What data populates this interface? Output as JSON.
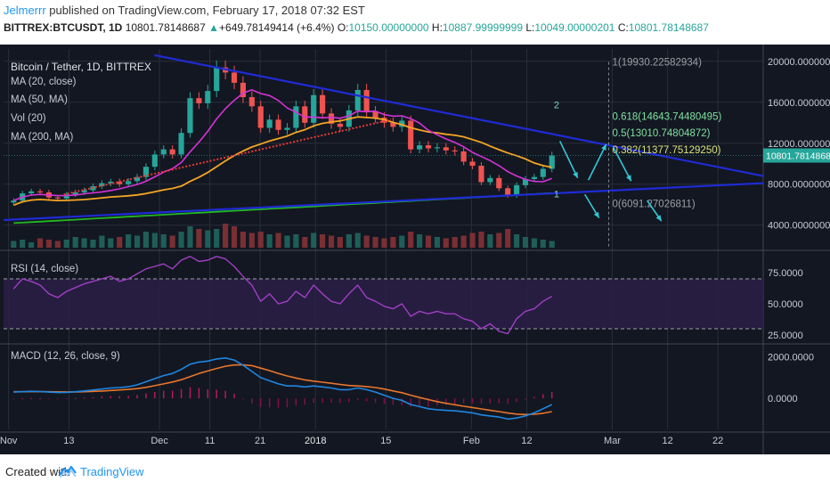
{
  "header": {
    "author": "Jelmerrr",
    "published": " published on TradingView.com, February 17, 2018 07:32 EST",
    "symbol": "BITTREX:BTCUSDT, 1D",
    "price": "10801.78148687",
    "change_arrow": "▲",
    "change": "+649.78149414 (+6.4%)",
    "open_label": "O:",
    "open": "10150.00000000",
    "high_label": "H:",
    "high": "10887.99999999",
    "low_label": "L:",
    "low": "10049.00000201",
    "close_label": "C:",
    "close": "10801.78148687"
  },
  "legend": {
    "title": "Bitcoin / Tether, 1D, BITTREX",
    "ma20": "MA (20, close)",
    "ma50": "MA (50, MA)",
    "vol": "Vol (20)",
    "ma200": "MA (200, MA)"
  },
  "panels": {
    "rsi_label": "RSI (14, close)",
    "macd_label": "MACD (12, 26, close, 9)"
  },
  "footer": {
    "created": "Created with",
    "brand": "TradingView",
    "logo_icon": "tradingview-logo-icon"
  },
  "colors": {
    "background": "#131722",
    "grid": "#2a2e39",
    "up": "#26a69a",
    "down": "#ef5350",
    "ma20": "#d633d6",
    "ma50": "#f5a623",
    "ma200": "#22b822",
    "trendline": "#1f2bd6",
    "fib_annotation": "#7fd3c8",
    "arrow": "#33c7d6",
    "rsi_line": "#a03fc4",
    "macd_line": "#1f86e0",
    "signal_line": "#e8762c",
    "price_tag": "#26a69a"
  },
  "chart_data": [
    {
      "type": "candlestick",
      "title": "Bitcoin / Tether, 1D, BITTREX",
      "x_tick_labels": [
        "Nov",
        "13",
        "Dec",
        "11",
        "21",
        "2018",
        "15",
        "Feb",
        "12",
        "Mar",
        "12",
        "22"
      ],
      "x_tick_dates": [
        "2017-11-01",
        "2017-11-13",
        "2017-12-01",
        "2017-12-11",
        "2017-12-21",
        "2018-01-01",
        "2018-01-15",
        "2018-02-01",
        "2018-02-12",
        "2018-03-01",
        "2018-03-12",
        "2018-03-22"
      ],
      "y_tick_labels": [
        "20000.00000000",
        "16000.00000000",
        "12000.00000000",
        "8000.00000000",
        "4000.00000000"
      ],
      "y_ticks": [
        20000,
        16000,
        12000,
        8000,
        4000
      ],
      "ylim": [
        1800,
        21200
      ],
      "last_price_label": "10801.78148687",
      "closes_approx": [
        6400,
        7100,
        7300,
        7200,
        6700,
        6600,
        7000,
        7200,
        7400,
        7800,
        8100,
        8250,
        8000,
        8300,
        8700,
        9700,
        10900,
        11400,
        10900,
        13000,
        16400,
        15900,
        17100,
        19400,
        18900,
        17900,
        16500,
        15600,
        13500,
        14300,
        13300,
        13500,
        15600,
        14000,
        16700,
        14900,
        13900,
        13600,
        15200,
        17200,
        15100,
        14500,
        14000,
        13600,
        14200,
        11400,
        11800,
        11500,
        11600,
        11300,
        11200,
        10200,
        9800,
        8200,
        8600,
        7600,
        6900,
        7900,
        8500,
        8700,
        9500,
        10800
      ],
      "fib_levels": [
        {
          "label": "1(19930.22582934)",
          "value": 19930.22582934
        },
        {
          "label": "0.618(14643.74480495)",
          "value": 14643.74480495
        },
        {
          "label": "0.5(13010.74804872)",
          "value": 13010.74804872
        },
        {
          "label": "0.382(11377.75129250)",
          "value": 11377.7512925
        },
        {
          "label": "0(6091.27026811)",
          "value": 6091.27026811
        }
      ],
      "annotations": [
        "1",
        "2"
      ],
      "volume_approx": [
        0.25,
        0.3,
        0.2,
        0.35,
        0.3,
        0.25,
        0.3,
        0.4,
        0.35,
        0.3,
        0.45,
        0.35,
        0.4,
        0.5,
        0.45,
        0.6,
        0.55,
        0.5,
        0.45,
        0.6,
        0.8,
        0.7,
        0.65,
        0.7,
        0.9,
        0.8,
        0.6,
        0.55,
        0.6,
        0.5,
        0.55,
        0.45,
        0.5,
        0.4,
        0.55,
        0.5,
        0.45,
        0.4,
        0.5,
        0.55,
        0.45,
        0.4,
        0.35,
        0.4,
        0.45,
        0.6,
        0.5,
        0.45,
        0.4,
        0.35,
        0.4,
        0.45,
        0.55,
        0.6,
        0.5,
        0.55,
        0.7,
        0.5,
        0.4,
        0.35,
        0.3,
        0.25
      ]
    },
    {
      "type": "line",
      "title": "RSI (14, close)",
      "y_tick_labels": [
        "75.0000",
        "50.0000",
        "25.0000"
      ],
      "y_ticks": [
        75,
        50,
        25
      ],
      "ylim": [
        20,
        90
      ],
      "values_approx": [
        62,
        70,
        68,
        65,
        58,
        55,
        60,
        63,
        66,
        68,
        70,
        72,
        68,
        70,
        74,
        78,
        80,
        82,
        78,
        85,
        88,
        84,
        85,
        88,
        86,
        80,
        72,
        65,
        52,
        58,
        50,
        52,
        60,
        55,
        65,
        58,
        52,
        50,
        58,
        65,
        55,
        52,
        48,
        46,
        50,
        40,
        44,
        42,
        44,
        42,
        42,
        38,
        36,
        30,
        34,
        28,
        26,
        38,
        44,
        46,
        52,
        56
      ]
    },
    {
      "type": "line",
      "title": "MACD (12, 26, close, 9)",
      "y_tick_labels": [
        "2000.0000",
        "0.0000"
      ],
      "y_ticks": [
        2000,
        0
      ],
      "ylim": [
        -1500,
        2500
      ],
      "macd_approx": [
        300,
        320,
        340,
        330,
        300,
        280,
        290,
        320,
        360,
        400,
        450,
        500,
        520,
        560,
        650,
        800,
        950,
        1100,
        1200,
        1400,
        1650,
        1750,
        1800,
        1900,
        1950,
        1850,
        1600,
        1300,
        1000,
        850,
        700,
        600,
        600,
        550,
        600,
        550,
        500,
        420,
        420,
        500,
        420,
        300,
        150,
        0,
        -100,
        -300,
        -400,
        -500,
        -550,
        -580,
        -600,
        -650,
        -700,
        -800,
        -850,
        -900,
        -1000,
        -950,
        -850,
        -700,
        -500,
        -300
      ],
      "signal_approx": [
        320,
        320,
        325,
        325,
        320,
        315,
        310,
        312,
        320,
        335,
        355,
        380,
        405,
        430,
        470,
        530,
        610,
        700,
        790,
        900,
        1050,
        1200,
        1320,
        1440,
        1550,
        1610,
        1620,
        1580,
        1460,
        1340,
        1200,
        1080,
        980,
        890,
        830,
        780,
        730,
        670,
        620,
        600,
        570,
        520,
        450,
        360,
        270,
        150,
        40,
        -60,
        -160,
        -240,
        -310,
        -380,
        -440,
        -510,
        -580,
        -640,
        -710,
        -760,
        -780,
        -770,
        -720,
        -640
      ]
    }
  ]
}
